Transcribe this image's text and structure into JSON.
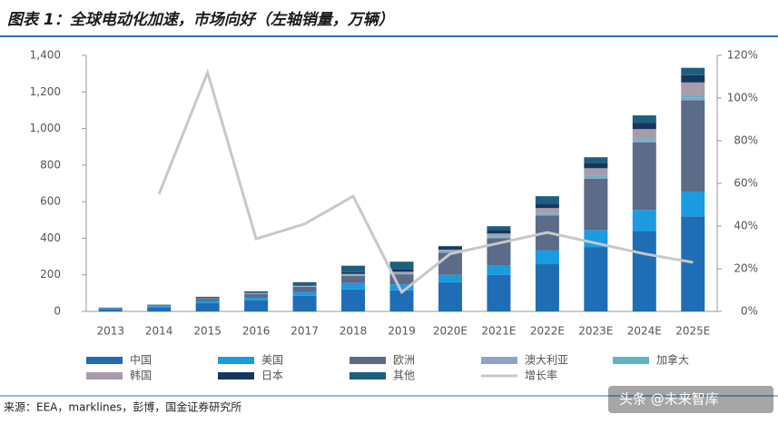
{
  "chart_data": {
    "type": "bar",
    "stacked": true,
    "title": "图表 1：全球电动化加速，市场向好（左轴销量，万辆）",
    "source": "来源：EEA，marklines，彭博，国金证券研究所",
    "watermark": "头条 @未来智库",
    "categories": [
      "2013",
      "2014",
      "2015",
      "2016",
      "2017",
      "2018",
      "2019",
      "2020E",
      "2021E",
      "2022E",
      "2023E",
      "2024E",
      "2025E"
    ],
    "series": [
      {
        "name": "中国",
        "color": "#1f6db5",
        "values": [
          10,
          20,
          45,
          60,
          85,
          120,
          115,
          160,
          200,
          260,
          350,
          440,
          520
        ]
      },
      {
        "name": "美国",
        "color": "#1b9be0",
        "values": [
          5,
          8,
          12,
          14,
          20,
          35,
          33,
          40,
          50,
          75,
          95,
          115,
          135
        ]
      },
      {
        "name": "欧洲",
        "color": "#5b6b88",
        "values": [
          3,
          5,
          12,
          22,
          30,
          40,
          55,
          120,
          150,
          190,
          280,
          370,
          500
        ]
      },
      {
        "name": "澳大利亚",
        "color": "#8fa3c9",
        "values": [
          0,
          0,
          1,
          1,
          1,
          2,
          2,
          3,
          5,
          8,
          10,
          12,
          15
        ]
      },
      {
        "name": "加拿大",
        "color": "#5bb5c7",
        "values": [
          1,
          1,
          1,
          1,
          2,
          3,
          4,
          5,
          6,
          7,
          8,
          10,
          12
        ]
      },
      {
        "name": "韩国",
        "color": "#a89cab",
        "values": [
          0,
          0,
          1,
          2,
          3,
          5,
          8,
          10,
          15,
          25,
          40,
          50,
          70
        ]
      },
      {
        "name": "日本",
        "color": "#17365d",
        "values": [
          1,
          1,
          3,
          3,
          5,
          10,
          15,
          15,
          20,
          25,
          30,
          35,
          40
        ]
      },
      {
        "name": "其他",
        "color": "#1d5f80",
        "values": [
          1,
          2,
          5,
          7,
          14,
          35,
          40,
          5,
          20,
          40,
          30,
          40,
          40
        ]
      },
      {
        "name": "增长率",
        "color": "#c8c8c8",
        "kind": "line",
        "axis": "y2",
        "values": [
          null,
          55,
          112,
          34,
          41,
          54,
          9,
          27,
          32,
          37,
          32,
          27,
          23
        ]
      }
    ],
    "ylim": [
      0,
      1400
    ],
    "yticks": [
      0,
      200,
      400,
      600,
      800,
      {
        "value": 1000,
        "label": "1,000"
      },
      {
        "value": 1200,
        "label": "1,200"
      },
      {
        "value": 1400,
        "label": "1,400"
      }
    ],
    "y2lim": [
      0,
      120
    ],
    "y2ticks": [
      {
        "value": 0,
        "label": "0%"
      },
      {
        "value": 20,
        "label": "20%"
      },
      {
        "value": 40,
        "label": "40%"
      },
      {
        "value": 60,
        "label": "60%"
      },
      {
        "value": 80,
        "label": "80%"
      },
      {
        "value": 100,
        "label": "100%"
      },
      {
        "value": 120,
        "label": "120%"
      }
    ]
  }
}
